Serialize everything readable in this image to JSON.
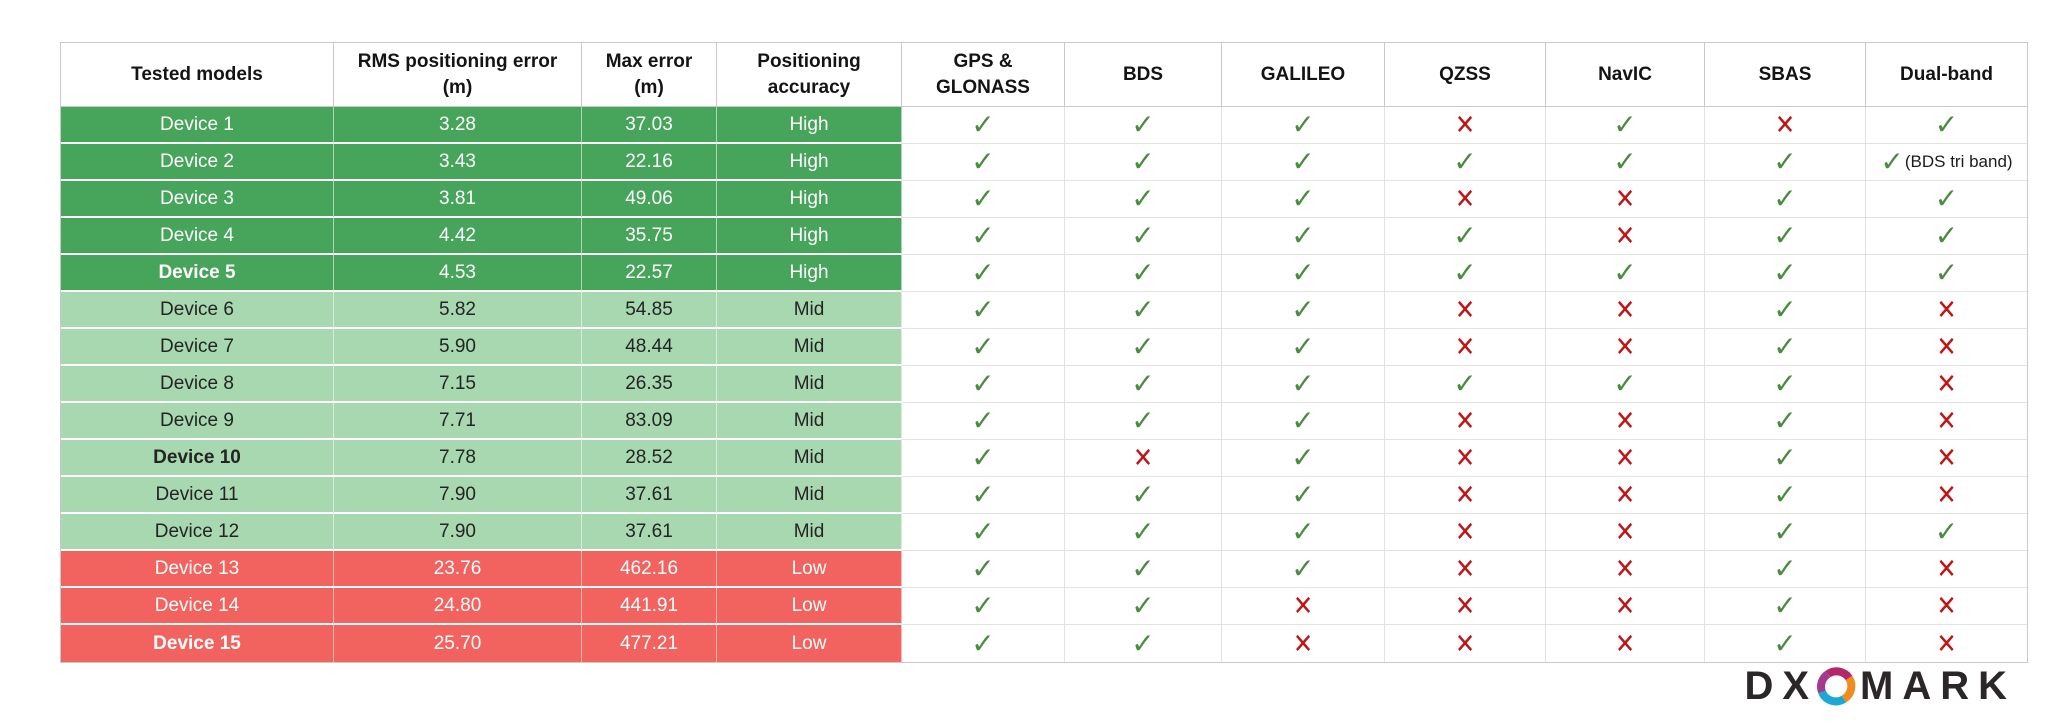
{
  "table": {
    "columns": [
      {
        "id": "tested-models",
        "label": "Tested models"
      },
      {
        "id": "rms-positioning-error",
        "label": "RMS positioning error (m)"
      },
      {
        "id": "max-error",
        "label": "Max error (m)"
      },
      {
        "id": "positioning-accuracy",
        "label": "Positioning accuracy"
      },
      {
        "id": "gps-glonass",
        "label": "GPS & GLONASS"
      },
      {
        "id": "bds",
        "label": "BDS"
      },
      {
        "id": "galileo",
        "label": "GALILEO"
      },
      {
        "id": "qzss",
        "label": "QZSS"
      },
      {
        "id": "navic",
        "label": "NavIC"
      },
      {
        "id": "sbas",
        "label": "SBAS"
      },
      {
        "id": "dual-band",
        "label": "Dual-band"
      }
    ],
    "rows": [
      {
        "model": "Device 1",
        "bold": false,
        "rms": "3.28",
        "max": "37.03",
        "accuracy": "High",
        "tier": "High",
        "marks": [
          "check",
          "check",
          "check",
          "cross",
          "check",
          "cross",
          "check"
        ],
        "dual_note": ""
      },
      {
        "model": "Device 2",
        "bold": false,
        "rms": "3.43",
        "max": "22.16",
        "accuracy": "High",
        "tier": "High",
        "marks": [
          "check",
          "check",
          "check",
          "check",
          "check",
          "check",
          "check"
        ],
        "dual_note": "(BDS tri band)"
      },
      {
        "model": "Device 3",
        "bold": false,
        "rms": "3.81",
        "max": "49.06",
        "accuracy": "High",
        "tier": "High",
        "marks": [
          "check",
          "check",
          "check",
          "cross",
          "cross",
          "check",
          "check"
        ],
        "dual_note": ""
      },
      {
        "model": "Device 4",
        "bold": false,
        "rms": "4.42",
        "max": "35.75",
        "accuracy": "High",
        "tier": "High",
        "marks": [
          "check",
          "check",
          "check",
          "check",
          "cross",
          "check",
          "check"
        ],
        "dual_note": ""
      },
      {
        "model": "Device 5",
        "bold": true,
        "rms": "4.53",
        "max": "22.57",
        "accuracy": "High",
        "tier": "High",
        "marks": [
          "check",
          "check",
          "check",
          "check",
          "check",
          "check",
          "check"
        ],
        "dual_note": ""
      },
      {
        "model": "Device 6",
        "bold": false,
        "rms": "5.82",
        "max": "54.85",
        "accuracy": "Mid",
        "tier": "Mid",
        "marks": [
          "check",
          "check",
          "check",
          "cross",
          "cross",
          "check",
          "cross"
        ],
        "dual_note": ""
      },
      {
        "model": "Device 7",
        "bold": false,
        "rms": "5.90",
        "max": "48.44",
        "accuracy": "Mid",
        "tier": "Mid",
        "marks": [
          "check",
          "check",
          "check",
          "cross",
          "cross",
          "check",
          "cross"
        ],
        "dual_note": ""
      },
      {
        "model": "Device 8",
        "bold": false,
        "rms": "7.15",
        "max": "26.35",
        "accuracy": "Mid",
        "tier": "Mid",
        "marks": [
          "check",
          "check",
          "check",
          "check",
          "check",
          "check",
          "cross"
        ],
        "dual_note": ""
      },
      {
        "model": "Device 9",
        "bold": false,
        "rms": "7.71",
        "max": "83.09",
        "accuracy": "Mid",
        "tier": "Mid",
        "marks": [
          "check",
          "check",
          "check",
          "cross",
          "cross",
          "check",
          "cross"
        ],
        "dual_note": ""
      },
      {
        "model": "Device 10",
        "bold": true,
        "rms": "7.78",
        "max": "28.52",
        "accuracy": "Mid",
        "tier": "Mid",
        "marks": [
          "check",
          "cross",
          "check",
          "cross",
          "cross",
          "check",
          "cross"
        ],
        "dual_note": ""
      },
      {
        "model": "Device 11",
        "bold": false,
        "rms": "7.90",
        "max": "37.61",
        "accuracy": "Mid",
        "tier": "Mid",
        "marks": [
          "check",
          "check",
          "check",
          "cross",
          "cross",
          "check",
          "cross"
        ],
        "dual_note": ""
      },
      {
        "model": "Device 12",
        "bold": false,
        "rms": "7.90",
        "max": "37.61",
        "accuracy": "Mid",
        "tier": "Mid",
        "marks": [
          "check",
          "check",
          "check",
          "cross",
          "cross",
          "check",
          "check"
        ],
        "dual_note": ""
      },
      {
        "model": "Device 13",
        "bold": false,
        "rms": "23.76",
        "max": "462.16",
        "accuracy": "Low",
        "tier": "Low",
        "marks": [
          "check",
          "check",
          "check",
          "cross",
          "cross",
          "check",
          "cross"
        ],
        "dual_note": ""
      },
      {
        "model": "Device 14",
        "bold": false,
        "rms": "24.80",
        "max": "441.91",
        "accuracy": "Low",
        "tier": "Low",
        "marks": [
          "check",
          "check",
          "cross",
          "cross",
          "cross",
          "check",
          "cross"
        ],
        "dual_note": ""
      },
      {
        "model": "Device 15",
        "bold": true,
        "rms": "25.70",
        "max": "477.21",
        "accuracy": "Low",
        "tier": "Low",
        "marks": [
          "check",
          "check",
          "cross",
          "cross",
          "cross",
          "check",
          "cross"
        ],
        "dual_note": ""
      }
    ]
  },
  "marks": {
    "check": "✓",
    "cross": "✕"
  },
  "colors": {
    "tier_high_bg": "#47a45b",
    "tier_mid_bg": "#a8d8b0",
    "tier_low_bg": "#f2635f",
    "check_green": "#4a8c3f",
    "cross_red": "#c21414",
    "border_gray": "#c9c9c9",
    "logo_text": "#2b2628",
    "logo_magenta": "#a43a8f",
    "logo_orange": "#f08c1e",
    "logo_blue": "#1ba8d5"
  },
  "logo": {
    "left": "DX",
    "right": "MARK",
    "o_icon": "dxomark-o-swirl-icon"
  }
}
